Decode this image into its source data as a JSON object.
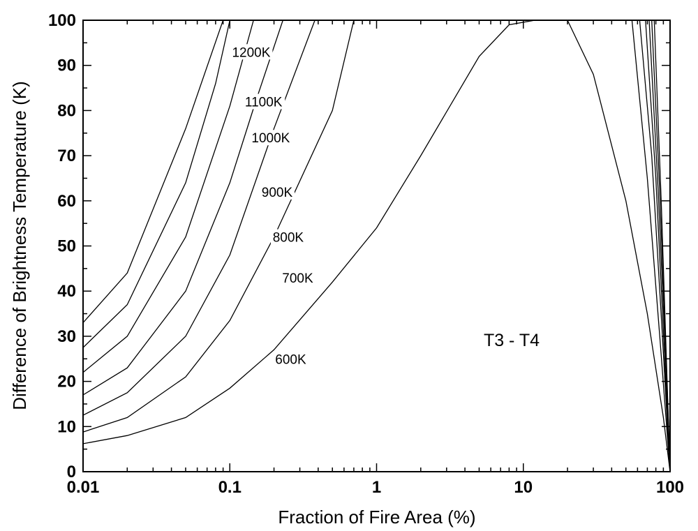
{
  "chart_data": {
    "type": "line",
    "title": "",
    "annotation": "T3 - T4",
    "xlabel": "Fraction of Fire Area (%)",
    "ylabel": "Difference of Brightness Temperature (K)",
    "xscale": "log",
    "xlim": [
      0.01,
      100
    ],
    "ylim": [
      0,
      100
    ],
    "xticks": [
      "0.01",
      "0.1",
      "1",
      "10",
      "100"
    ],
    "yticks": [
      "0",
      "10",
      "20",
      "30",
      "40",
      "50",
      "60",
      "70",
      "80",
      "90",
      "100"
    ],
    "grid": false,
    "series": [
      {
        "name": "600K",
        "points": [
          [
            0.01,
            6.2
          ],
          [
            0.02,
            8.0
          ],
          [
            0.05,
            12.0
          ],
          [
            0.1,
            18.5
          ],
          [
            0.2,
            27.0
          ],
          [
            0.5,
            42.0
          ],
          [
            1,
            54.0
          ],
          [
            2,
            70.0
          ],
          [
            5,
            92.0
          ],
          [
            8,
            99.0
          ],
          [
            12,
            100.0
          ],
          [
            20,
            100.0
          ],
          [
            30,
            88.0
          ],
          [
            50,
            60.0
          ],
          [
            70,
            35.0
          ],
          [
            90,
            12.0
          ],
          [
            100,
            0
          ]
        ]
      },
      {
        "name": "700K",
        "points": [
          [
            0.01,
            8.8
          ],
          [
            0.02,
            12.0
          ],
          [
            0.05,
            21.0
          ],
          [
            0.1,
            33.5
          ],
          [
            0.2,
            52.0
          ],
          [
            0.5,
            80.0
          ],
          [
            0.7,
            100.0
          ],
          [
            55,
            100.0
          ],
          [
            70,
            65.0
          ],
          [
            85,
            30.0
          ],
          [
            100,
            0
          ]
        ]
      },
      {
        "name": "800K",
        "points": [
          [
            0.01,
            12.5
          ],
          [
            0.02,
            17.5
          ],
          [
            0.05,
            30.0
          ],
          [
            0.1,
            48.0
          ],
          [
            0.2,
            76.0
          ],
          [
            0.38,
            100.0
          ],
          [
            62,
            100.0
          ],
          [
            75,
            70.0
          ],
          [
            88,
            32.0
          ],
          [
            100,
            0
          ]
        ]
      },
      {
        "name": "900K",
        "points": [
          [
            0.01,
            17.0
          ],
          [
            0.02,
            23.0
          ],
          [
            0.05,
            40.0
          ],
          [
            0.1,
            64.0
          ],
          [
            0.15,
            82.0
          ],
          [
            0.23,
            100.0
          ],
          [
            68,
            100.0
          ],
          [
            80,
            65.0
          ],
          [
            91,
            28.0
          ],
          [
            100,
            0
          ]
        ]
      },
      {
        "name": "1000K",
        "points": [
          [
            0.01,
            22.0
          ],
          [
            0.02,
            30.0
          ],
          [
            0.05,
            52.0
          ],
          [
            0.1,
            81.0
          ],
          [
            0.145,
            100.0
          ],
          [
            72,
            100.0
          ],
          [
            83,
            62.0
          ],
          [
            93,
            26.0
          ],
          [
            100,
            0
          ]
        ]
      },
      {
        "name": "1100K",
        "points": [
          [
            0.01,
            27.5
          ],
          [
            0.02,
            37.0
          ],
          [
            0.05,
            64.0
          ],
          [
            0.08,
            86.0
          ],
          [
            0.1,
            100.0
          ],
          [
            75,
            100.0
          ],
          [
            85,
            62.0
          ],
          [
            94,
            25.0
          ],
          [
            100,
            0
          ]
        ]
      },
      {
        "name": "1200K",
        "points": [
          [
            0.01,
            33.0
          ],
          [
            0.02,
            44.0
          ],
          [
            0.05,
            76.0
          ],
          [
            0.09,
            100.0
          ],
          [
            78,
            100.0
          ],
          [
            87,
            60.0
          ],
          [
            95,
            22.0
          ],
          [
            100,
            0
          ]
        ]
      }
    ]
  }
}
